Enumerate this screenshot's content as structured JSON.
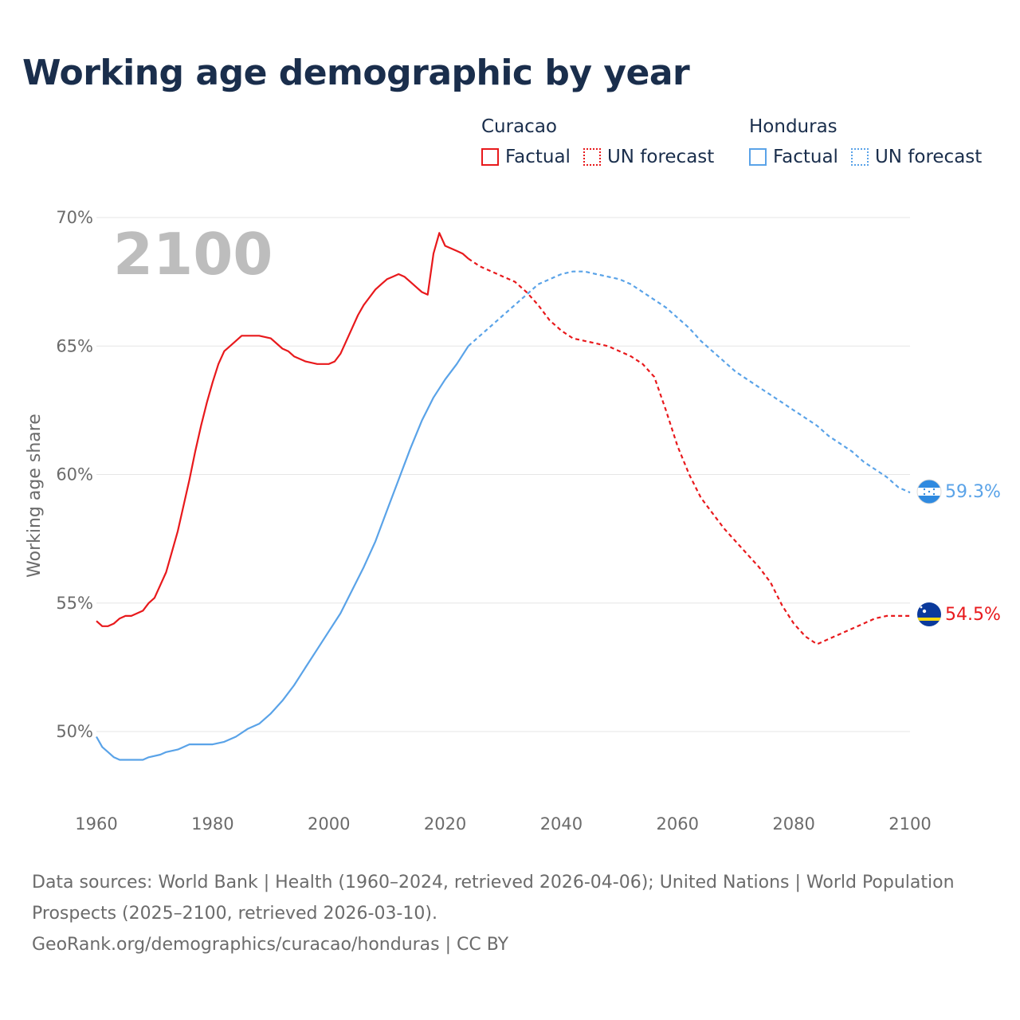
{
  "title": "Working age demographic by year",
  "year_overlay": "2100",
  "legend": [
    {
      "country": "Curacao",
      "factual_label": "Factual",
      "forecast_label": "UN forecast",
      "color": "#e8191c"
    },
    {
      "country": "Honduras",
      "factual_label": "Factual",
      "forecast_label": "UN forecast",
      "color": "#5aa3e8"
    }
  ],
  "footer": {
    "sources": "Data sources: World Bank | Health (1960–2024, retrieved 2026-04-06); United Nations | World Population Prospects (2025–2100, retrieved 2026-03-10).",
    "credit": "GeoRank.org/demographics/curacao/honduras | CC BY"
  },
  "chart_data": {
    "type": "line",
    "title": "Working age demographic by year",
    "xlabel": "",
    "ylabel": "Working age share",
    "xlim": [
      1960,
      2100
    ],
    "ylim": [
      48,
      70
    ],
    "x_ticks": [
      1960,
      1980,
      2000,
      2020,
      2040,
      2060,
      2080,
      2100
    ],
    "x_tick_labels": [
      "1960",
      "1980",
      "2000",
      "2020",
      "2040",
      "2060",
      "2080",
      "2100"
    ],
    "y_ticks": [
      50,
      55,
      60,
      65,
      70
    ],
    "y_tick_labels": [
      "50%",
      "55%",
      "60%",
      "65%",
      "70%"
    ],
    "grid": true,
    "series": [
      {
        "name": "Curacao",
        "color": "#e8191c",
        "end_label": "54.5%",
        "factual_range": [
          1960,
          2024
        ],
        "forecast_range": [
          2024,
          2100
        ],
        "points": [
          [
            1960,
            54.3
          ],
          [
            1961,
            54.1
          ],
          [
            1962,
            54.1
          ],
          [
            1963,
            54.2
          ],
          [
            1964,
            54.4
          ],
          [
            1965,
            54.5
          ],
          [
            1966,
            54.5
          ],
          [
            1967,
            54.6
          ],
          [
            1968,
            54.7
          ],
          [
            1969,
            55.0
          ],
          [
            1970,
            55.2
          ],
          [
            1971,
            55.7
          ],
          [
            1972,
            56.2
          ],
          [
            1973,
            57.0
          ],
          [
            1974,
            57.8
          ],
          [
            1975,
            58.8
          ],
          [
            1976,
            59.8
          ],
          [
            1977,
            60.9
          ],
          [
            1978,
            61.9
          ],
          [
            1979,
            62.8
          ],
          [
            1980,
            63.6
          ],
          [
            1981,
            64.3
          ],
          [
            1982,
            64.8
          ],
          [
            1983,
            65.0
          ],
          [
            1984,
            65.2
          ],
          [
            1985,
            65.4
          ],
          [
            1986,
            65.4
          ],
          [
            1988,
            65.4
          ],
          [
            1990,
            65.3
          ],
          [
            1991,
            65.1
          ],
          [
            1992,
            64.9
          ],
          [
            1993,
            64.8
          ],
          [
            1994,
            64.6
          ],
          [
            1996,
            64.4
          ],
          [
            1998,
            64.3
          ],
          [
            2000,
            64.3
          ],
          [
            2001,
            64.4
          ],
          [
            2002,
            64.7
          ],
          [
            2003,
            65.2
          ],
          [
            2004,
            65.7
          ],
          [
            2005,
            66.2
          ],
          [
            2006,
            66.6
          ],
          [
            2007,
            66.9
          ],
          [
            2008,
            67.2
          ],
          [
            2009,
            67.4
          ],
          [
            2010,
            67.6
          ],
          [
            2011,
            67.7
          ],
          [
            2012,
            67.8
          ],
          [
            2013,
            67.7
          ],
          [
            2014,
            67.5
          ],
          [
            2015,
            67.3
          ],
          [
            2016,
            67.1
          ],
          [
            2017,
            67.0
          ],
          [
            2018,
            68.6
          ],
          [
            2019,
            69.4
          ],
          [
            2020,
            68.9
          ],
          [
            2022,
            68.7
          ],
          [
            2023,
            68.6
          ],
          [
            2024,
            68.4
          ],
          [
            2026,
            68.1
          ],
          [
            2028,
            67.9
          ],
          [
            2030,
            67.7
          ],
          [
            2032,
            67.5
          ],
          [
            2034,
            67.1
          ],
          [
            2036,
            66.6
          ],
          [
            2038,
            66.0
          ],
          [
            2040,
            65.6
          ],
          [
            2042,
            65.3
          ],
          [
            2044,
            65.2
          ],
          [
            2046,
            65.1
          ],
          [
            2048,
            65.0
          ],
          [
            2050,
            64.8
          ],
          [
            2052,
            64.6
          ],
          [
            2054,
            64.3
          ],
          [
            2056,
            63.8
          ],
          [
            2058,
            62.5
          ],
          [
            2060,
            61.1
          ],
          [
            2062,
            60.0
          ],
          [
            2064,
            59.1
          ],
          [
            2066,
            58.5
          ],
          [
            2068,
            57.9
          ],
          [
            2070,
            57.4
          ],
          [
            2072,
            56.9
          ],
          [
            2074,
            56.4
          ],
          [
            2076,
            55.8
          ],
          [
            2078,
            54.9
          ],
          [
            2080,
            54.2
          ],
          [
            2082,
            53.7
          ],
          [
            2084,
            53.4
          ],
          [
            2086,
            53.6
          ],
          [
            2088,
            53.8
          ],
          [
            2090,
            54.0
          ],
          [
            2092,
            54.2
          ],
          [
            2094,
            54.4
          ],
          [
            2096,
            54.5
          ],
          [
            2100,
            54.5
          ]
        ]
      },
      {
        "name": "Honduras",
        "color": "#5aa3e8",
        "end_label": "59.3%",
        "factual_range": [
          1960,
          2024
        ],
        "forecast_range": [
          2024,
          2100
        ],
        "points": [
          [
            1960,
            49.8
          ],
          [
            1961,
            49.4
          ],
          [
            1962,
            49.2
          ],
          [
            1963,
            49.0
          ],
          [
            1964,
            48.9
          ],
          [
            1965,
            48.9
          ],
          [
            1968,
            48.9
          ],
          [
            1969,
            49.0
          ],
          [
            1971,
            49.1
          ],
          [
            1972,
            49.2
          ],
          [
            1974,
            49.3
          ],
          [
            1976,
            49.5
          ],
          [
            1980,
            49.5
          ],
          [
            1982,
            49.6
          ],
          [
            1984,
            49.8
          ],
          [
            1986,
            50.1
          ],
          [
            1988,
            50.3
          ],
          [
            1990,
            50.7
          ],
          [
            1992,
            51.2
          ],
          [
            1994,
            51.8
          ],
          [
            1996,
            52.5
          ],
          [
            1998,
            53.2
          ],
          [
            2000,
            53.9
          ],
          [
            2002,
            54.6
          ],
          [
            2004,
            55.5
          ],
          [
            2006,
            56.4
          ],
          [
            2008,
            57.4
          ],
          [
            2010,
            58.6
          ],
          [
            2012,
            59.8
          ],
          [
            2014,
            61.0
          ],
          [
            2016,
            62.1
          ],
          [
            2018,
            63.0
          ],
          [
            2020,
            63.7
          ],
          [
            2022,
            64.3
          ],
          [
            2024,
            65.0
          ],
          [
            2026,
            65.4
          ],
          [
            2028,
            65.8
          ],
          [
            2030,
            66.2
          ],
          [
            2032,
            66.6
          ],
          [
            2034,
            67.0
          ],
          [
            2036,
            67.4
          ],
          [
            2038,
            67.6
          ],
          [
            2040,
            67.8
          ],
          [
            2042,
            67.9
          ],
          [
            2044,
            67.9
          ],
          [
            2046,
            67.8
          ],
          [
            2048,
            67.7
          ],
          [
            2050,
            67.6
          ],
          [
            2052,
            67.4
          ],
          [
            2054,
            67.1
          ],
          [
            2056,
            66.8
          ],
          [
            2058,
            66.5
          ],
          [
            2060,
            66.1
          ],
          [
            2062,
            65.7
          ],
          [
            2064,
            65.2
          ],
          [
            2066,
            64.8
          ],
          [
            2068,
            64.4
          ],
          [
            2070,
            64.0
          ],
          [
            2072,
            63.7
          ],
          [
            2074,
            63.4
          ],
          [
            2076,
            63.1
          ],
          [
            2078,
            62.8
          ],
          [
            2080,
            62.5
          ],
          [
            2082,
            62.2
          ],
          [
            2084,
            61.9
          ],
          [
            2086,
            61.5
          ],
          [
            2088,
            61.2
          ],
          [
            2090,
            60.9
          ],
          [
            2092,
            60.5
          ],
          [
            2094,
            60.2
          ],
          [
            2096,
            59.9
          ],
          [
            2098,
            59.5
          ],
          [
            2100,
            59.3
          ]
        ]
      }
    ]
  }
}
